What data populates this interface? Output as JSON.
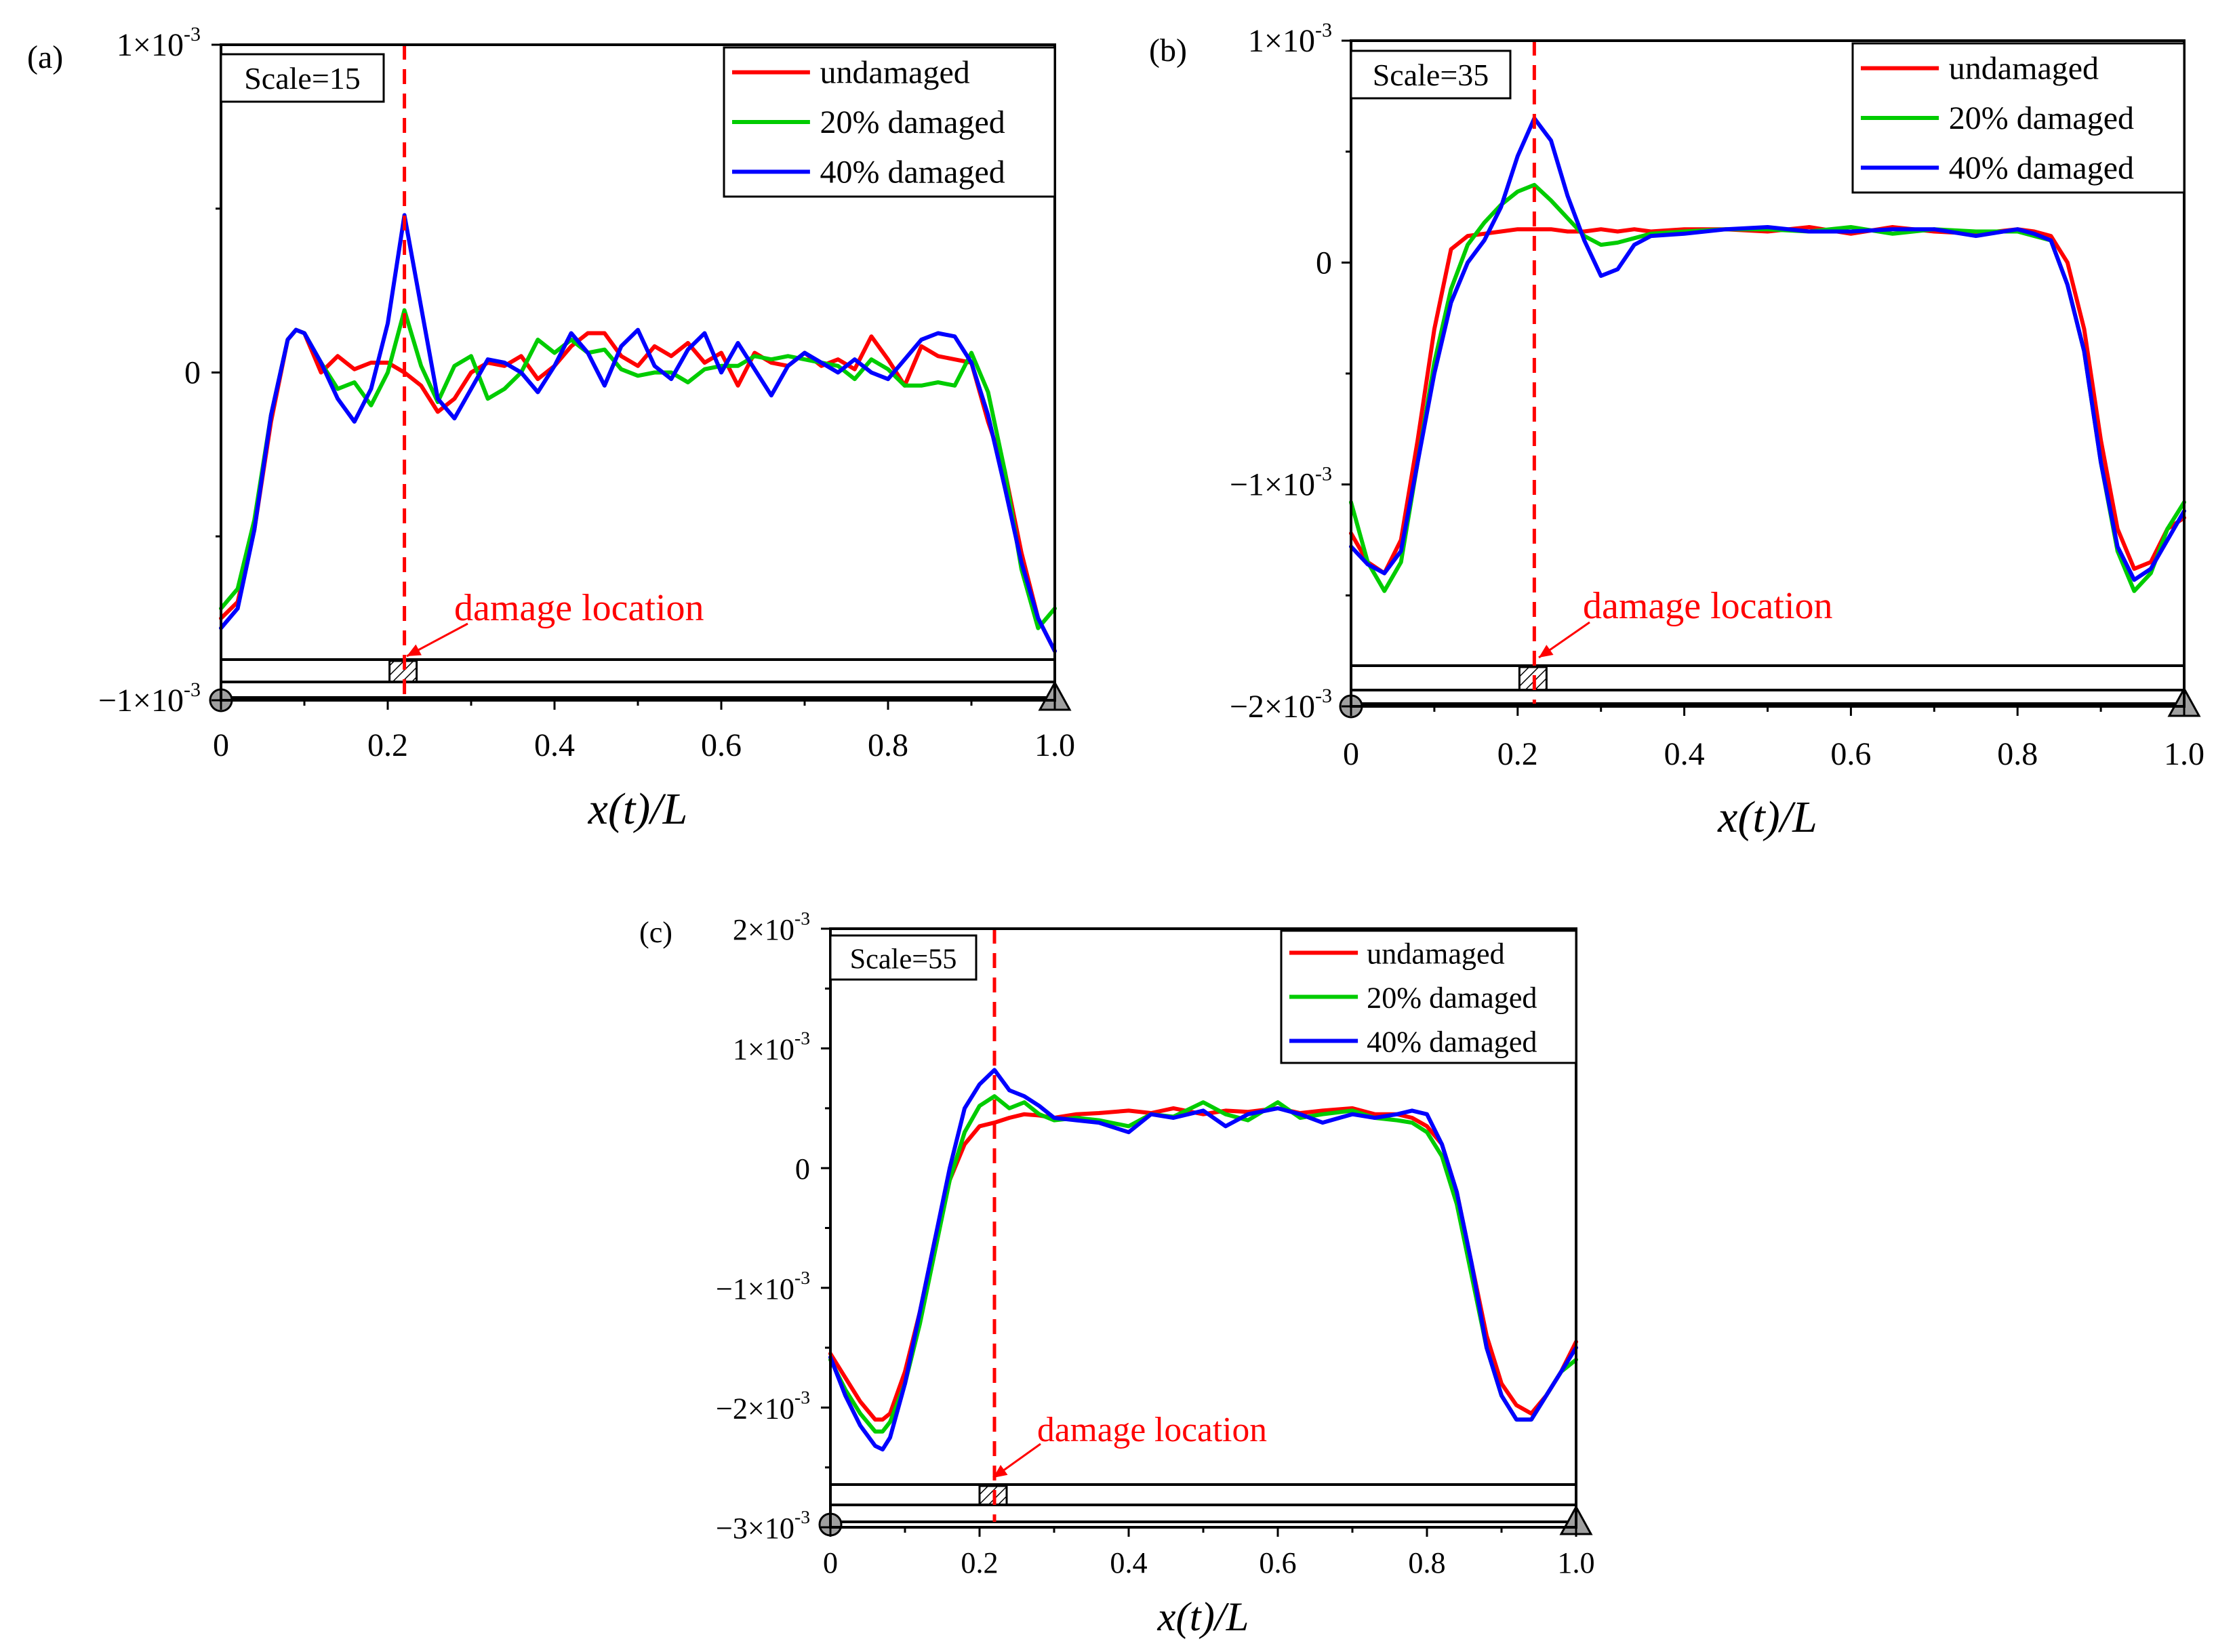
{
  "chart_data": [
    {
      "type": "line",
      "panel_label": "(a)",
      "scale_label": "Scale=15",
      "xlabel": "x(t)/L",
      "xlim": [
        0,
        1.0
      ],
      "x_ticks": [
        "0",
        "0.2",
        "0.4",
        "0.6",
        "0.8",
        "1.0"
      ],
      "ylim": [
        -0.001,
        0.001
      ],
      "y_ticks": [
        {
          "value": 0.001,
          "mantissa": "1×10",
          "exp": "-3"
        },
        {
          "value": 0,
          "mantissa": "0",
          "exp": ""
        },
        {
          "value": -0.001,
          "mantissa": "−1×10",
          "exp": "-3"
        }
      ],
      "damage_x": 0.22,
      "damage_label": "damage location",
      "legend": [
        "undamaged",
        "20% damaged",
        "40% damaged"
      ],
      "x": [
        0,
        0.02,
        0.04,
        0.06,
        0.08,
        0.09,
        0.1,
        0.12,
        0.14,
        0.16,
        0.18,
        0.2,
        0.22,
        0.24,
        0.26,
        0.28,
        0.3,
        0.32,
        0.34,
        0.36,
        0.38,
        0.4,
        0.42,
        0.44,
        0.46,
        0.48,
        0.5,
        0.52,
        0.54,
        0.56,
        0.58,
        0.6,
        0.62,
        0.64,
        0.66,
        0.68,
        0.7,
        0.72,
        0.74,
        0.76,
        0.78,
        0.8,
        0.82,
        0.84,
        0.86,
        0.88,
        0.9,
        0.92,
        0.94,
        0.96,
        0.98,
        1.0
      ],
      "series": [
        {
          "name": "undamaged",
          "color": "#ff0000",
          "values": [
            -0.00075,
            -0.0007,
            -0.00048,
            -0.00015,
            0.0001,
            0.00013,
            0.00012,
            0.0,
            5e-05,
            1e-05,
            3e-05,
            3e-05,
            0.0,
            -4e-05,
            -0.00012,
            -8e-05,
            0.0,
            3e-05,
            2e-05,
            5e-05,
            -2e-05,
            2e-05,
            8e-05,
            0.00012,
            0.00012,
            5e-05,
            2e-05,
            8e-05,
            5e-05,
            9e-05,
            3e-05,
            6e-05,
            -4e-05,
            6e-05,
            3e-05,
            2e-05,
            6e-05,
            2e-05,
            4e-05,
            1e-05,
            0.00011,
            4e-05,
            -4e-05,
            8e-05,
            5e-05,
            4e-05,
            3e-05,
            -0.00015,
            -0.0003,
            -0.00055,
            -0.00075,
            -0.00085
          ]
        },
        {
          "name": "20% damaged",
          "color": "#00cc00",
          "values": [
            -0.00072,
            -0.00066,
            -0.00045,
            -0.00013,
            0.0001,
            0.00013,
            0.00012,
            3e-05,
            -5e-05,
            -3e-05,
            -0.0001,
            0.0,
            0.00019,
            2e-05,
            -9e-05,
            2e-05,
            5e-05,
            -8e-05,
            -5e-05,
            0.0,
            0.0001,
            6e-05,
            0.0001,
            6e-05,
            7e-05,
            1e-05,
            -1e-05,
            0.0,
            0.0,
            -3e-05,
            1e-05,
            2e-05,
            2e-05,
            5e-05,
            4e-05,
            5e-05,
            4e-05,
            3e-05,
            2e-05,
            -2e-05,
            4e-05,
            1e-05,
            -4e-05,
            -4e-05,
            -3e-05,
            -4e-05,
            6e-05,
            -6e-05,
            -0.0003,
            -0.0006,
            -0.00078,
            -0.00072
          ]
        },
        {
          "name": "40% damaged",
          "color": "#0000ff",
          "values": [
            -0.00078,
            -0.00072,
            -0.00048,
            -0.00013,
            0.0001,
            0.00013,
            0.00012,
            3e-05,
            -8e-05,
            -0.00015,
            -5e-05,
            0.00015,
            0.00048,
            0.0002,
            -8e-05,
            -0.00014,
            -5e-05,
            4e-05,
            3e-05,
            0.0,
            -6e-05,
            2e-05,
            0.00012,
            6e-05,
            -4e-05,
            8e-05,
            0.00013,
            2e-05,
            -2e-05,
            7e-05,
            0.00012,
            0.0,
            9e-05,
            1e-05,
            -7e-05,
            2e-05,
            6e-05,
            3e-05,
            0.0,
            4e-05,
            0.0,
            -2e-05,
            4e-05,
            0.0001,
            0.00012,
            0.00011,
            3e-05,
            -0.00013,
            -0.00035,
            -0.00058,
            -0.00075,
            -0.00085
          ]
        }
      ]
    },
    {
      "type": "line",
      "panel_label": "(b)",
      "scale_label": "Scale=35",
      "xlabel": "x(t)/L",
      "xlim": [
        0,
        1.0
      ],
      "x_ticks": [
        "0",
        "0.2",
        "0.4",
        "0.6",
        "0.8",
        "1.0"
      ],
      "ylim": [
        -0.002,
        0.001
      ],
      "y_ticks": [
        {
          "value": 0.001,
          "mantissa": "1×10",
          "exp": "-3"
        },
        {
          "value": 0,
          "mantissa": "0",
          "exp": ""
        },
        {
          "value": -0.001,
          "mantissa": "−1×10",
          "exp": "-3"
        },
        {
          "value": -0.002,
          "mantissa": "−2×10",
          "exp": "-3"
        }
      ],
      "damage_x": 0.22,
      "damage_label": "damage location",
      "legend": [
        "undamaged",
        "20% damaged",
        "40% damaged"
      ],
      "x": [
        0,
        0.02,
        0.04,
        0.06,
        0.08,
        0.1,
        0.12,
        0.14,
        0.16,
        0.18,
        0.2,
        0.22,
        0.24,
        0.26,
        0.28,
        0.3,
        0.32,
        0.34,
        0.36,
        0.4,
        0.45,
        0.5,
        0.55,
        0.6,
        0.65,
        0.7,
        0.75,
        0.8,
        0.82,
        0.84,
        0.86,
        0.88,
        0.9,
        0.92,
        0.94,
        0.96,
        0.98,
        1.0
      ],
      "series": [
        {
          "name": "undamaged",
          "color": "#ff0000",
          "values": [
            -0.00122,
            -0.00135,
            -0.0014,
            -0.00125,
            -0.0008,
            -0.0003,
            6e-05,
            0.00012,
            0.00013,
            0.00014,
            0.00015,
            0.00015,
            0.00015,
            0.00014,
            0.00014,
            0.00015,
            0.00014,
            0.00015,
            0.00014,
            0.00015,
            0.00015,
            0.00014,
            0.00016,
            0.00013,
            0.00016,
            0.00014,
            0.00013,
            0.00015,
            0.00014,
            0.00012,
            0.0,
            -0.0003,
            -0.0008,
            -0.0012,
            -0.00138,
            -0.00135,
            -0.0012,
            -0.00115
          ]
        },
        {
          "name": "20% damaged",
          "color": "#00cc00",
          "values": [
            -0.00108,
            -0.00135,
            -0.00148,
            -0.00135,
            -0.0009,
            -0.00045,
            -0.00012,
            8e-05,
            0.00018,
            0.00026,
            0.00032,
            0.00035,
            0.00028,
            0.0002,
            0.00012,
            8e-05,
            9e-05,
            0.00011,
            0.00013,
            0.00014,
            0.00015,
            0.00015,
            0.00014,
            0.00016,
            0.00013,
            0.00015,
            0.00014,
            0.00014,
            0.00012,
            0.0001,
            -0.0001,
            -0.0004,
            -0.0009,
            -0.0013,
            -0.00148,
            -0.0014,
            -0.0012,
            -0.00108
          ]
        },
        {
          "name": "40% damaged",
          "color": "#0000ff",
          "values": [
            -0.00128,
            -0.00136,
            -0.0014,
            -0.0013,
            -0.0009,
            -0.0005,
            -0.00018,
            0.0,
            0.0001,
            0.00025,
            0.00048,
            0.00065,
            0.00055,
            0.0003,
            0.0001,
            -6e-05,
            -3e-05,
            8e-05,
            0.00012,
            0.00013,
            0.00015,
            0.00016,
            0.00014,
            0.00014,
            0.00015,
            0.00015,
            0.00012,
            0.00015,
            0.00013,
            0.0001,
            -0.0001,
            -0.0004,
            -0.0009,
            -0.00128,
            -0.00143,
            -0.00138,
            -0.00125,
            -0.00112
          ]
        }
      ]
    },
    {
      "type": "line",
      "panel_label": "(c)",
      "scale_label": "Scale=55",
      "xlabel": "x(t)/L",
      "xlim": [
        0,
        1.0
      ],
      "x_ticks": [
        "0",
        "0.2",
        "0.4",
        "0.6",
        "0.8",
        "1.0"
      ],
      "ylim": [
        -0.003,
        0.002
      ],
      "y_ticks": [
        {
          "value": 0.002,
          "mantissa": "2×10",
          "exp": "-3"
        },
        {
          "value": 0.001,
          "mantissa": "1×10",
          "exp": "-3"
        },
        {
          "value": 0,
          "mantissa": "0",
          "exp": ""
        },
        {
          "value": -0.001,
          "mantissa": "−1×10",
          "exp": "-3"
        },
        {
          "value": -0.002,
          "mantissa": "−2×10",
          "exp": "-3"
        },
        {
          "value": -0.003,
          "mantissa": "−3×10",
          "exp": "-3"
        }
      ],
      "damage_x": 0.22,
      "damage_label": "damage location",
      "legend": [
        "undamaged",
        "20% damaged",
        "40% damaged"
      ],
      "x": [
        0,
        0.02,
        0.04,
        0.06,
        0.07,
        0.08,
        0.1,
        0.12,
        0.14,
        0.16,
        0.18,
        0.2,
        0.22,
        0.24,
        0.26,
        0.28,
        0.3,
        0.33,
        0.36,
        0.4,
        0.43,
        0.46,
        0.5,
        0.53,
        0.56,
        0.6,
        0.63,
        0.66,
        0.7,
        0.73,
        0.76,
        0.78,
        0.8,
        0.82,
        0.84,
        0.86,
        0.88,
        0.9,
        0.92,
        0.94,
        0.96,
        0.98,
        1.0
      ],
      "series": [
        {
          "name": "undamaged",
          "color": "#ff0000",
          "values": [
            -0.00155,
            -0.00175,
            -0.00195,
            -0.0021,
            -0.0021,
            -0.00205,
            -0.0017,
            -0.0012,
            -0.0006,
            -0.0001,
            0.0002,
            0.00035,
            0.00038,
            0.00042,
            0.00045,
            0.00044,
            0.00042,
            0.00045,
            0.00046,
            0.00048,
            0.00046,
            0.0005,
            0.00045,
            0.00048,
            0.00047,
            0.0005,
            0.00046,
            0.00048,
            0.0005,
            0.00045,
            0.00045,
            0.00042,
            0.00035,
            0.0002,
            -0.0002,
            -0.0008,
            -0.0014,
            -0.0018,
            -0.00198,
            -0.00205,
            -0.0019,
            -0.0017,
            -0.00145
          ]
        },
        {
          "name": "20% damaged",
          "color": "#00cc00",
          "values": [
            -0.0016,
            -0.00185,
            -0.00205,
            -0.0022,
            -0.0022,
            -0.00212,
            -0.0018,
            -0.0013,
            -0.0007,
            -0.0001,
            0.0003,
            0.00052,
            0.0006,
            0.0005,
            0.00055,
            0.00045,
            0.0004,
            0.00042,
            0.0004,
            0.00035,
            0.00045,
            0.00043,
            0.00055,
            0.00045,
            0.0004,
            0.00055,
            0.00042,
            0.00045,
            0.00048,
            0.00042,
            0.0004,
            0.00038,
            0.0003,
            0.0001,
            -0.0003,
            -0.0009,
            -0.0015,
            -0.0019,
            -0.0021,
            -0.0021,
            -0.0019,
            -0.0017,
            -0.0016
          ]
        },
        {
          "name": "40% damaged",
          "color": "#0000ff",
          "values": [
            -0.00158,
            -0.0019,
            -0.00215,
            -0.00232,
            -0.00235,
            -0.00225,
            -0.0018,
            -0.0012,
            -0.0006,
            0.0,
            0.0005,
            0.0007,
            0.00082,
            0.00065,
            0.0006,
            0.00052,
            0.00042,
            0.0004,
            0.00038,
            0.0003,
            0.00045,
            0.00042,
            0.00048,
            0.00035,
            0.00045,
            0.0005,
            0.00045,
            0.00038,
            0.00045,
            0.00042,
            0.00045,
            0.00048,
            0.00045,
            0.0002,
            -0.0002,
            -0.0008,
            -0.0015,
            -0.0019,
            -0.0021,
            -0.0021,
            -0.0019,
            -0.0017,
            -0.0015
          ]
        }
      ]
    }
  ]
}
